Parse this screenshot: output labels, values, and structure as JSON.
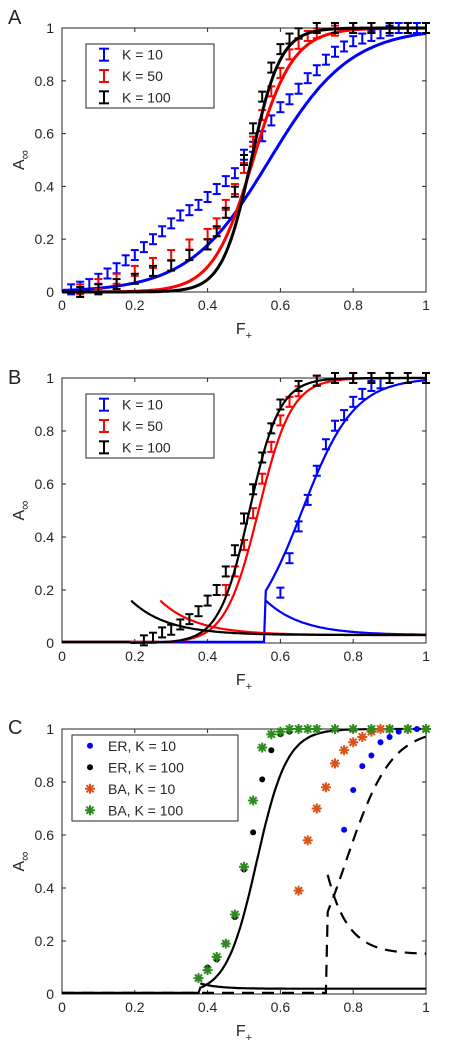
{
  "chart_data": [
    {
      "panel_label": "A",
      "type": "line",
      "xlabel": "F",
      "xlabel_sub": "+",
      "ylabel": "A",
      "ylabel_sub": "∞",
      "xlim": [
        0,
        1
      ],
      "ylim": [
        0,
        1
      ],
      "xticks": [
        "0",
        "0.2",
        "0.4",
        "0.6",
        "0.8",
        "1"
      ],
      "yticks": [
        "0",
        "0.2",
        "0.4",
        "0.6",
        "0.8",
        "1"
      ],
      "legend_position": "top-left",
      "series": [
        {
          "name": "K = 10",
          "color": "#0000ff",
          "line_x0": 0.57,
          "line_k": 9,
          "line_base": 0.0,
          "points": {
            "x": [
              0.025,
              0.05,
              0.075,
              0.1,
              0.125,
              0.15,
              0.175,
              0.2,
              0.225,
              0.25,
              0.275,
              0.3,
              0.325,
              0.35,
              0.375,
              0.4,
              0.425,
              0.45,
              0.475,
              0.5,
              0.525,
              0.55,
              0.575,
              0.6,
              0.625,
              0.65,
              0.675,
              0.7,
              0.725,
              0.75,
              0.775,
              0.8,
              0.825,
              0.85,
              0.875,
              0.9,
              0.925,
              0.95,
              0.975,
              1.0
            ],
            "y": [
              0.01,
              0.02,
              0.03,
              0.05,
              0.07,
              0.09,
              0.12,
              0.14,
              0.17,
              0.2,
              0.23,
              0.26,
              0.29,
              0.31,
              0.33,
              0.36,
              0.39,
              0.42,
              0.45,
              0.52,
              0.55,
              0.59,
              0.65,
              0.7,
              0.73,
              0.77,
              0.81,
              0.84,
              0.88,
              0.91,
              0.93,
              0.95,
              0.96,
              0.97,
              0.98,
              0.99,
              1.0,
              1.0,
              1.0,
              1.0
            ]
          }
        },
        {
          "name": "K = 50",
          "color": "#ff0000",
          "line_x0": 0.525,
          "line_k": 18,
          "line_base": 0.0,
          "points": {
            "x": [
              0.05,
              0.1,
              0.15,
              0.2,
              0.25,
              0.3,
              0.35,
              0.4,
              0.425,
              0.45,
              0.475,
              0.5,
              0.525,
              0.55,
              0.575,
              0.6,
              0.625,
              0.65,
              0.675,
              0.7,
              0.75,
              0.8,
              0.85,
              0.9,
              0.95,
              1.0
            ],
            "y": [
              0.01,
              0.03,
              0.05,
              0.08,
              0.11,
              0.14,
              0.18,
              0.22,
              0.26,
              0.33,
              0.39,
              0.47,
              0.57,
              0.67,
              0.76,
              0.83,
              0.9,
              0.94,
              0.97,
              0.98,
              0.99,
              1.0,
              1.0,
              1.0,
              1.0,
              1.0
            ]
          }
        },
        {
          "name": "K = 100",
          "color": "#000000",
          "line_x0": 0.52,
          "line_k": 25,
          "line_base": 0.0,
          "points": {
            "x": [
              0.05,
              0.1,
              0.15,
              0.2,
              0.25,
              0.3,
              0.35,
              0.4,
              0.425,
              0.45,
              0.475,
              0.5,
              0.525,
              0.55,
              0.575,
              0.6,
              0.625,
              0.65,
              0.7,
              0.75,
              0.8,
              0.85,
              0.9,
              0.95,
              1.0
            ],
            "y": [
              0.0,
              0.01,
              0.03,
              0.05,
              0.08,
              0.1,
              0.14,
              0.18,
              0.23,
              0.3,
              0.38,
              0.5,
              0.62,
              0.74,
              0.85,
              0.92,
              0.96,
              0.98,
              1.0,
              1.0,
              1.0,
              1.0,
              1.0,
              1.0,
              1.0
            ]
          }
        }
      ]
    },
    {
      "panel_label": "B",
      "type": "line",
      "xlabel": "F",
      "xlabel_sub": "+",
      "ylabel": "A",
      "ylabel_sub": "∞",
      "xlim": [
        0,
        1
      ],
      "ylim": [
        0,
        1
      ],
      "xticks": [
        "0",
        "0.2",
        "0.4",
        "0.6",
        "0.8",
        "1"
      ],
      "yticks": [
        "0",
        "0.2",
        "0.4",
        "0.6",
        "0.8",
        "1"
      ],
      "legend_position": "top-left",
      "series": [
        {
          "name": "K = 10",
          "color": "#0000ff",
          "line_x0": 0.66,
          "line_k": 14,
          "bistable_turn": 0.56,
          "points": {
            "x": [
              0.6,
              0.625,
              0.65,
              0.675,
              0.7,
              0.725,
              0.75,
              0.775,
              0.8,
              0.825,
              0.85,
              0.875,
              0.9
            ],
            "y": [
              0.19,
              0.32,
              0.44,
              0.54,
              0.65,
              0.75,
              0.82,
              0.86,
              0.91,
              0.94,
              0.97,
              0.98,
              1.0
            ]
          }
        },
        {
          "name": "K = 50",
          "color": "#ff0000",
          "line_x0": 0.54,
          "line_k": 22,
          "bistable_turn": 0.27,
          "points": {
            "x": [
              0.45,
              0.475,
              0.5,
              0.525,
              0.55,
              0.575,
              0.6,
              0.625,
              0.65,
              0.7,
              0.75,
              0.8,
              0.85,
              0.9
            ],
            "y": [
              0.2,
              0.27,
              0.37,
              0.49,
              0.62,
              0.74,
              0.84,
              0.91,
              0.95,
              0.99,
              1.0,
              1.0,
              1.0,
              1.0
            ]
          }
        },
        {
          "name": "K = 100",
          "color": "#000000",
          "line_x0": 0.515,
          "line_k": 24,
          "bistable_turn": 0.19,
          "points": {
            "x": [
              0.225,
              0.25,
              0.275,
              0.3,
              0.325,
              0.35,
              0.375,
              0.4,
              0.425,
              0.45,
              0.475,
              0.5,
              0.525,
              0.55,
              0.575,
              0.6,
              0.65,
              0.7,
              0.75,
              0.8,
              0.85,
              0.9,
              0.95,
              1.0
            ],
            "y": [
              0.01,
              0.02,
              0.04,
              0.05,
              0.07,
              0.09,
              0.12,
              0.16,
              0.2,
              0.27,
              0.35,
              0.47,
              0.58,
              0.7,
              0.81,
              0.9,
              0.97,
              0.99,
              1.0,
              1.0,
              1.0,
              1.0,
              1.0,
              1.0
            ]
          }
        }
      ]
    },
    {
      "panel_label": "C",
      "type": "line",
      "xlabel": "F",
      "xlabel_sub": "+",
      "ylabel": "A",
      "ylabel_sub": "∞",
      "xlim": [
        0,
        1
      ],
      "ylim": [
        0,
        1
      ],
      "xticks": [
        "0",
        "0.2",
        "0.4",
        "0.6",
        "0.8",
        "1"
      ],
      "yticks": [
        "0",
        "0.2",
        "0.4",
        "0.6",
        "0.8",
        "1"
      ],
      "legend_position": "top-left",
      "series": [
        {
          "name": "ER, K = 10",
          "color": "#0000ff",
          "marker": "dot",
          "points": {
            "x": [
              0.775,
              0.8,
              0.825,
              0.85,
              0.875,
              0.9,
              0.925,
              0.95,
              0.975,
              1.0
            ],
            "y": [
              0.62,
              0.77,
              0.86,
              0.9,
              0.95,
              0.97,
              0.99,
              1.0,
              1.0,
              1.0
            ]
          }
        },
        {
          "name": "ER, K = 100",
          "color": "#000000",
          "marker": "dot",
          "points": {
            "x": [
              0.375,
              0.4,
              0.425,
              0.45,
              0.475,
              0.5,
              0.525,
              0.55,
              0.575,
              0.6,
              0.625,
              0.65,
              0.7,
              0.75,
              0.8,
              0.85,
              0.9,
              0.95,
              1.0
            ],
            "y": [
              0.06,
              0.1,
              0.13,
              0.19,
              0.29,
              0.47,
              0.61,
              0.81,
              0.92,
              0.98,
              0.99,
              1.0,
              1.0,
              1.0,
              1.0,
              1.0,
              1.0,
              1.0,
              1.0
            ]
          }
        },
        {
          "name": "BA, K = 10",
          "color": "#d95319",
          "marker": "asterisk",
          "points": {
            "x": [
              0.65,
              0.675,
              0.7,
              0.725,
              0.75,
              0.775,
              0.8,
              0.825,
              0.85,
              0.875,
              0.9,
              0.95,
              1.0
            ],
            "y": [
              0.39,
              0.58,
              0.7,
              0.78,
              0.87,
              0.92,
              0.95,
              0.97,
              0.99,
              1.0,
              1.0,
              1.0,
              1.0
            ]
          }
        },
        {
          "name": "BA, K = 100",
          "color": "#2e8b1f",
          "marker": "asterisk",
          "points": {
            "x": [
              0.375,
              0.4,
              0.425,
              0.45,
              0.475,
              0.5,
              0.525,
              0.55,
              0.575,
              0.6,
              0.625,
              0.65,
              0.675,
              0.7,
              0.75,
              0.8,
              0.85,
              0.9,
              0.95,
              1.0
            ],
            "y": [
              0.06,
              0.09,
              0.14,
              0.19,
              0.3,
              0.48,
              0.73,
              0.93,
              0.98,
              0.99,
              1.0,
              1.0,
              1.0,
              1.0,
              1.0,
              1.0,
              1.0,
              1.0,
              1.0,
              1.0
            ]
          }
        }
      ],
      "theory_curves": [
        {
          "style": "solid",
          "color": "#000000",
          "line_x0": 0.535,
          "line_k": 24,
          "bistable_turn": 0.38
        },
        {
          "style": "dashed",
          "color": "#000000",
          "line_x0": 0.78,
          "line_k": 16,
          "bistable_turn": 0.73
        }
      ]
    }
  ]
}
